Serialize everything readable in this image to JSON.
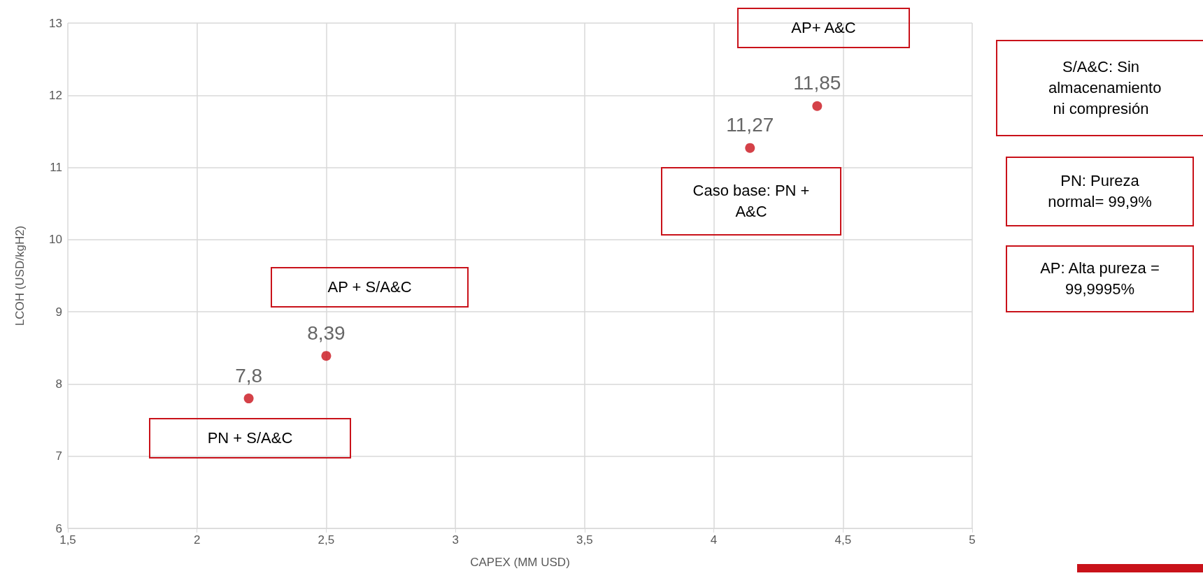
{
  "chart_data": {
    "type": "scatter",
    "xlabel": "CAPEX (MM USD)",
    "ylabel": "LCOH (USD/kgH2)",
    "x": [
      2.2,
      2.5,
      4.14,
      4.4
    ],
    "values": [
      7.8,
      8.39,
      11.27,
      11.85
    ],
    "value_labels": [
      "7,8",
      "8,39",
      "11,27",
      "11,85"
    ],
    "color": "#c9121a",
    "marker": "circle",
    "grid": true,
    "xlim": [
      1.5,
      5
    ],
    "xticks": [
      {
        "value": 1.5,
        "label": "1,5"
      },
      2,
      {
        "value": 2.5,
        "label": "2,5"
      },
      3,
      {
        "value": 3.5,
        "label": "3,5"
      },
      4,
      {
        "value": 4.5,
        "label": "4,5"
      },
      5
    ],
    "ylim": [
      6,
      13
    ],
    "yticks": [
      6,
      7,
      8,
      9,
      10,
      11,
      12,
      13
    ],
    "annotations": [
      "PN + S/A&C",
      "AP + S/A&C",
      "Caso base: PN + A&C",
      "AP+ A&C",
      "S/A&C: Sin almacenamiento ni compresión",
      "PN: Pureza normal= 99,9%",
      "AP: Alta pureza = 99,9995%"
    ]
  }
}
